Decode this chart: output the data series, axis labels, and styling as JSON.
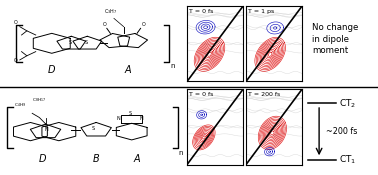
{
  "bg_color": "#ffffff",
  "panel1_label1": "T = 0 fs",
  "panel1_label2": "T = 1 ps",
  "panel2_label1": "T = 0 fs",
  "panel2_label2": "T = 200 fs",
  "label_D_row1": "D",
  "label_A_row1": "A",
  "label_D_row2": "D",
  "label_B_row2": "B",
  "label_A_row2": "A",
  "red_color": "#dd0000",
  "blue_color": "#0000bb",
  "gray_color": "#bbbbbb",
  "black": "#000000",
  "no_change_text": "No change\nin dipole\nmoment",
  "ct2_label": "CT$_2$",
  "ct1_label": "CT$_1$",
  "time_label": "~200 fs"
}
